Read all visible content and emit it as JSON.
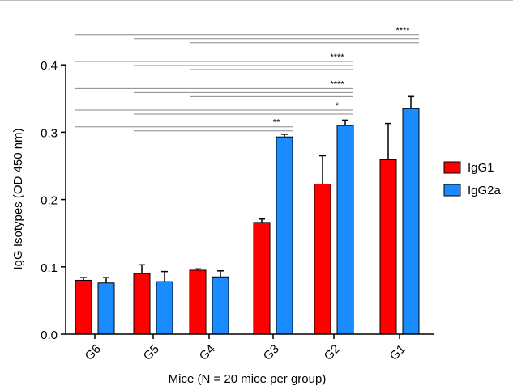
{
  "chart_data": {
    "type": "bar",
    "xlabel": "Mice (N = 20 mice per group)",
    "ylabel": "IgG Isotypes (OD 450 nm)",
    "ylim": [
      0,
      0.4
    ],
    "yticks": [
      "0.0",
      "0.1",
      "0.2",
      "0.3",
      "0.4"
    ],
    "categories": [
      "G6",
      "G5",
      "G4",
      "G3",
      "G2",
      "G1"
    ],
    "series": [
      {
        "name": "IgG1",
        "color": "#ff0000",
        "values": [
          0.08,
          0.09,
          0.095,
          0.166,
          0.223,
          0.259
        ],
        "errors": [
          0.004,
          0.013,
          0.002,
          0.005,
          0.042,
          0.054
        ]
      },
      {
        "name": "IgG2a",
        "color": "#1a8cff",
        "values": [
          0.076,
          0.078,
          0.085,
          0.293,
          0.31,
          0.335
        ],
        "errors": [
          0.008,
          0.015,
          0.009,
          0.004,
          0.008,
          0.018
        ]
      }
    ],
    "legend_position": "right",
    "significance": [
      {
        "label": "****",
        "target": "G1",
        "comparisons": [
          "G6",
          "G5",
          "G4"
        ],
        "level": 0.445
      },
      {
        "label": "****",
        "target": "G2",
        "comparisons": [
          "G6",
          "G5",
          "G4"
        ],
        "level": 0.405
      },
      {
        "label": "****",
        "target": "G2",
        "comparisons": [
          "G6",
          "G5",
          "G4"
        ],
        "level": 0.365
      },
      {
        "label": "*",
        "target": "G2",
        "comparisons": [
          "G6",
          "G5"
        ],
        "level": 0.333
      },
      {
        "label": "**",
        "target": "G3",
        "comparisons": [
          "G6",
          "G5"
        ],
        "level": 0.308
      }
    ]
  }
}
